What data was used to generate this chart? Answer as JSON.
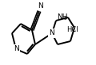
{
  "bg_color": "#ffffff",
  "line_color": "#000000",
  "line_width": 1.4,
  "figsize": [
    1.2,
    0.82
  ],
  "dpi": 100,
  "xlim": [
    0,
    120
  ],
  "ylim": [
    0,
    82
  ]
}
